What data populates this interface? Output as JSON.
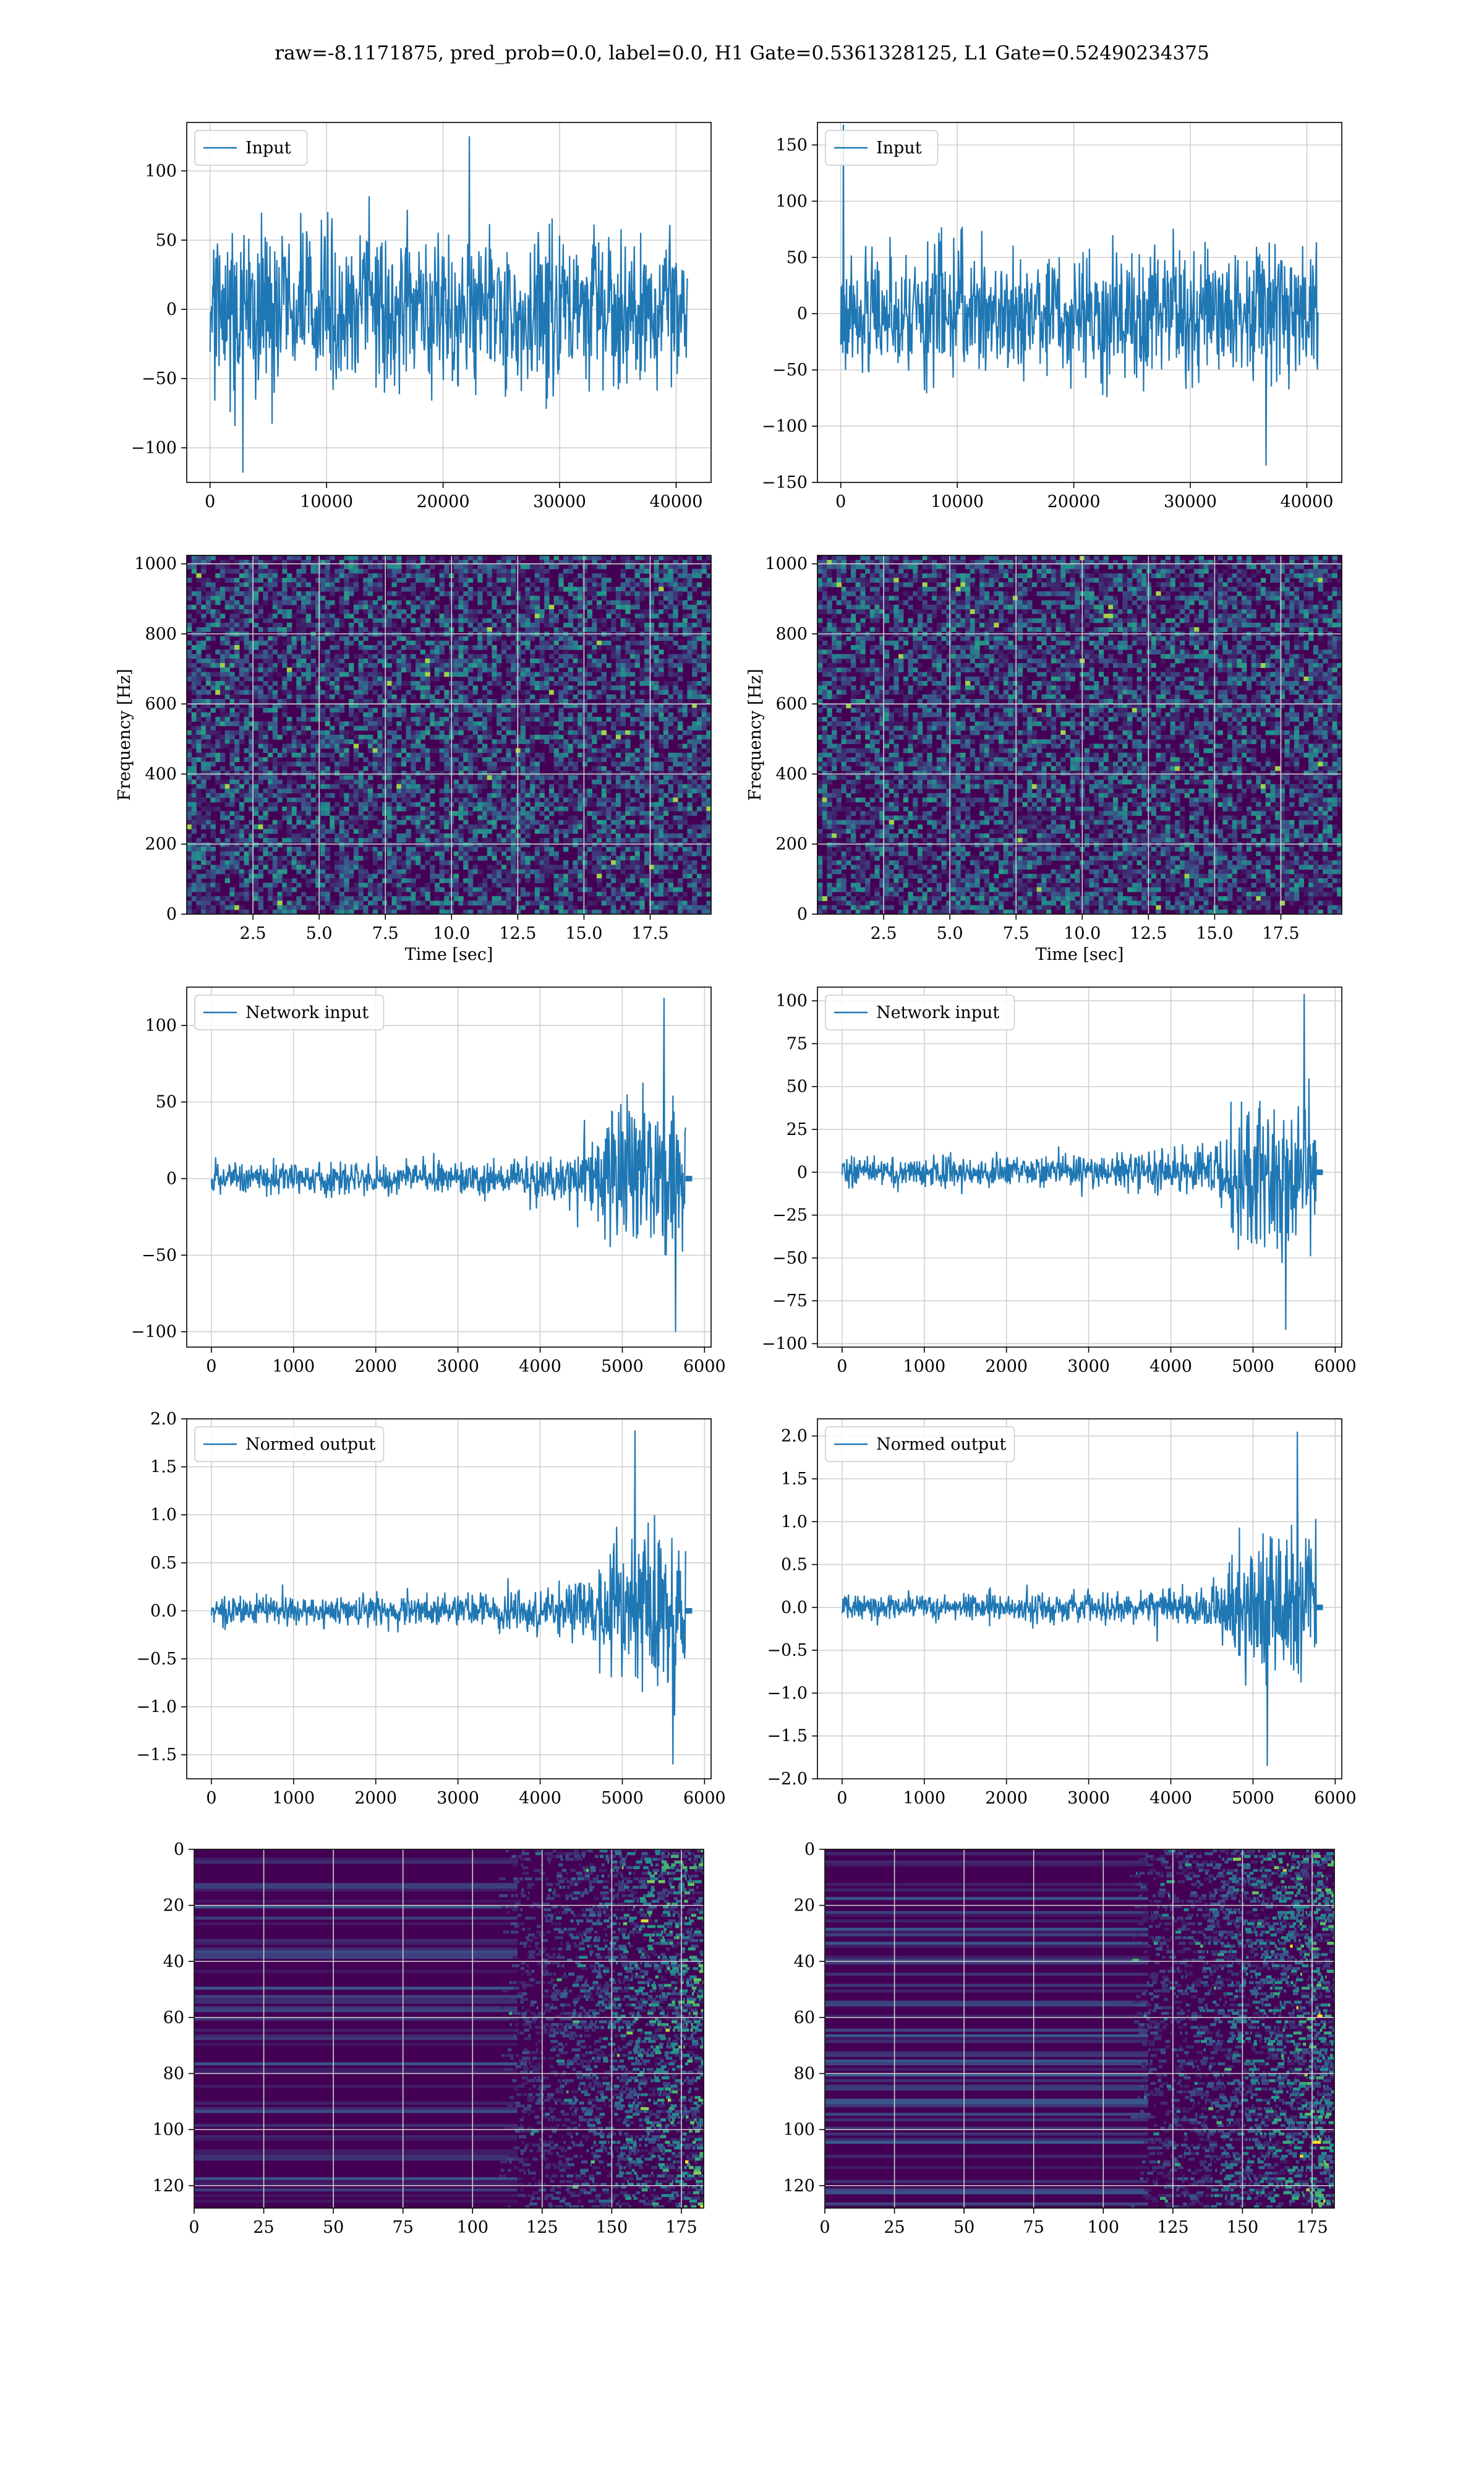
{
  "figure": {
    "title": "raw=-8.1171875, pred_prob=0.0, label=0.0, H1 Gate=0.5361328125, L1 Gate=0.52490234375"
  },
  "colors": {
    "line": "#1f77b4",
    "grid": "#d0d0d0",
    "spec_base": "#440154",
    "viridis": [
      "#440154",
      "#3b528b",
      "#21918c",
      "#5ec962",
      "#fde725"
    ]
  },
  "chart_data": [
    {
      "id": "input-h1",
      "type": "line",
      "row": 0,
      "col": 0,
      "legend": "Input",
      "legend_position": "top-left",
      "grid": true,
      "xlim": [
        -2000,
        43000
      ],
      "ylim": [
        -125,
        135
      ],
      "xticks": [
        0,
        10000,
        20000,
        30000,
        40000
      ],
      "xtick_labels": [
        "0",
        "10000",
        "20000",
        "30000",
        "40000"
      ],
      "yticks": [
        -100,
        -50,
        0,
        50,
        100
      ],
      "ytick_labels": [
        "−100",
        "−50",
        "0",
        "50",
        "100"
      ],
      "xlabel": "",
      "ylabel": "",
      "signal": {
        "x_start": 0,
        "x_end": 40960,
        "envelope": [
          [
            0,
            75
          ],
          [
            1,
            75
          ]
        ],
        "peak_max": 125,
        "peak_min": -118
      }
    },
    {
      "id": "input-l1",
      "type": "line",
      "row": 0,
      "col": 1,
      "legend": "Input",
      "legend_position": "top-left",
      "grid": true,
      "xlim": [
        -2000,
        43000
      ],
      "ylim": [
        -150,
        170
      ],
      "xticks": [
        0,
        10000,
        20000,
        30000,
        40000
      ],
      "xtick_labels": [
        "0",
        "10000",
        "20000",
        "30000",
        "40000"
      ],
      "yticks": [
        -150,
        -100,
        -50,
        0,
        50,
        100,
        150
      ],
      "ytick_labels": [
        "−150",
        "−100",
        "−50",
        "0",
        "50",
        "100",
        "150"
      ],
      "xlabel": "",
      "ylabel": "",
      "signal": {
        "x_start": 0,
        "x_end": 40960,
        "envelope": [
          [
            0,
            72
          ],
          [
            1,
            72
          ]
        ],
        "peak_max": 168,
        "peak_min": -135
      }
    },
    {
      "id": "spectrogram-h1",
      "type": "heatmap",
      "row": 1,
      "col": 0,
      "grid": true,
      "xlim": [
        0,
        19.8
      ],
      "ylim": [
        0,
        1024
      ],
      "xticks": [
        2.5,
        5.0,
        7.5,
        10.0,
        12.5,
        15.0,
        17.5
      ],
      "xtick_labels": [
        "2.5",
        "5.0",
        "7.5",
        "10.0",
        "12.5",
        "15.0",
        "17.5"
      ],
      "yticks": [
        0,
        200,
        400,
        600,
        800,
        1000
      ],
      "ytick_labels": [
        "0",
        "200",
        "400",
        "600",
        "800",
        "1000"
      ],
      "xlabel": "Time [sec]",
      "ylabel": "Frequency [Hz]",
      "texture": "noise",
      "seed": 11
    },
    {
      "id": "spectrogram-l1",
      "type": "heatmap",
      "row": 1,
      "col": 1,
      "grid": true,
      "xlim": [
        0,
        19.8
      ],
      "ylim": [
        0,
        1024
      ],
      "xticks": [
        2.5,
        5.0,
        7.5,
        10.0,
        12.5,
        15.0,
        17.5
      ],
      "xtick_labels": [
        "2.5",
        "5.0",
        "7.5",
        "10.0",
        "12.5",
        "15.0",
        "17.5"
      ],
      "yticks": [
        0,
        200,
        400,
        600,
        800,
        1000
      ],
      "ytick_labels": [
        "0",
        "200",
        "400",
        "600",
        "800",
        "1000"
      ],
      "xlabel": "Time [sec]",
      "ylabel": "Frequency [Hz]",
      "texture": "noise",
      "seed": 29
    },
    {
      "id": "network-input-h1",
      "type": "line",
      "row": 2,
      "col": 0,
      "legend": "Network input",
      "legend_position": "top-left",
      "grid": true,
      "xlim": [
        -300,
        6080
      ],
      "ylim": [
        -110,
        125
      ],
      "xticks": [
        0,
        1000,
        2000,
        3000,
        4000,
        5000,
        6000
      ],
      "xtick_labels": [
        "0",
        "1000",
        "2000",
        "3000",
        "4000",
        "5000",
        "6000"
      ],
      "yticks": [
        -100,
        -50,
        0,
        50,
        100
      ],
      "ytick_labels": [
        "−100",
        "−50",
        "0",
        "50",
        "100"
      ],
      "xlabel": "",
      "ylabel": "",
      "signal": {
        "x_start": 0,
        "x_end": 5770,
        "envelope": [
          [
            0,
            12
          ],
          [
            0.55,
            14
          ],
          [
            0.72,
            20
          ],
          [
            0.8,
            28
          ],
          [
            0.83,
            55
          ],
          [
            0.9,
            75
          ],
          [
            1,
            70
          ]
        ],
        "peak_max": 118,
        "peak_min": -100,
        "tail_end": 5850
      }
    },
    {
      "id": "network-input-l1",
      "type": "line",
      "row": 2,
      "col": 1,
      "legend": "Network input",
      "legend_position": "top-left",
      "grid": true,
      "xlim": [
        -300,
        6080
      ],
      "ylim": [
        -102,
        108
      ],
      "xticks": [
        0,
        1000,
        2000,
        3000,
        4000,
        5000,
        6000
      ],
      "xtick_labels": [
        "0",
        "1000",
        "2000",
        "3000",
        "4000",
        "5000",
        "6000"
      ],
      "yticks": [
        -100,
        -75,
        -50,
        -25,
        0,
        25,
        50,
        75,
        100
      ],
      "ytick_labels": [
        "−100",
        "−75",
        "−50",
        "−25",
        "0",
        "25",
        "50",
        "75",
        "100"
      ],
      "xlabel": "",
      "ylabel": "",
      "signal": {
        "x_start": 0,
        "x_end": 5770,
        "envelope": [
          [
            0,
            11
          ],
          [
            0.55,
            13
          ],
          [
            0.72,
            18
          ],
          [
            0.8,
            26
          ],
          [
            0.83,
            50
          ],
          [
            0.9,
            65
          ],
          [
            1,
            60
          ]
        ],
        "peak_max": 104,
        "peak_min": -92,
        "tail_end": 5850
      }
    },
    {
      "id": "normed-output-h1",
      "type": "line",
      "row": 3,
      "col": 0,
      "legend": "Normed output",
      "legend_position": "top-left",
      "grid": true,
      "xlim": [
        -300,
        6080
      ],
      "ylim": [
        -1.75,
        2.0
      ],
      "xticks": [
        0,
        1000,
        2000,
        3000,
        4000,
        5000,
        6000
      ],
      "xtick_labels": [
        "0",
        "1000",
        "2000",
        "3000",
        "4000",
        "5000",
        "6000"
      ],
      "yticks": [
        -1.5,
        -1.0,
        -0.5,
        0.0,
        0.5,
        1.0,
        1.5,
        2.0
      ],
      "ytick_labels": [
        "−1.5",
        "−1.0",
        "−0.5",
        "0.0",
        "0.5",
        "1.0",
        "1.5",
        "2.0"
      ],
      "xlabel": "",
      "ylabel": "",
      "signal": {
        "x_start": 0,
        "x_end": 5770,
        "envelope": [
          [
            0,
            0.2
          ],
          [
            0.55,
            0.22
          ],
          [
            0.72,
            0.3
          ],
          [
            0.8,
            0.45
          ],
          [
            0.83,
            0.85
          ],
          [
            0.9,
            1.15
          ],
          [
            1,
            1.1
          ]
        ],
        "peak_max": 1.88,
        "peak_min": -1.6,
        "tail_end": 5850
      }
    },
    {
      "id": "normed-output-l1",
      "type": "line",
      "row": 3,
      "col": 1,
      "legend": "Normed output",
      "legend_position": "top-left",
      "grid": true,
      "xlim": [
        -300,
        6080
      ],
      "ylim": [
        -2.0,
        2.2
      ],
      "xticks": [
        0,
        1000,
        2000,
        3000,
        4000,
        5000,
        6000
      ],
      "xtick_labels": [
        "0",
        "1000",
        "2000",
        "3000",
        "4000",
        "5000",
        "6000"
      ],
      "yticks": [
        -2.0,
        -1.5,
        -1.0,
        -0.5,
        0.0,
        0.5,
        1.0,
        1.5,
        2.0
      ],
      "ytick_labels": [
        "−2.0",
        "−1.5",
        "−1.0",
        "−0.5",
        "0.0",
        "0.5",
        "1.0",
        "1.5",
        "2.0"
      ],
      "xlabel": "",
      "ylabel": "",
      "signal": {
        "x_start": 0,
        "x_end": 5770,
        "envelope": [
          [
            0,
            0.2
          ],
          [
            0.55,
            0.22
          ],
          [
            0.72,
            0.3
          ],
          [
            0.8,
            0.45
          ],
          [
            0.83,
            0.9
          ],
          [
            0.9,
            1.2
          ],
          [
            1,
            1.15
          ]
        ],
        "peak_max": 2.05,
        "peak_min": -1.85,
        "tail_end": 5850
      }
    },
    {
      "id": "feature-map-h1",
      "type": "heatmap",
      "row": 4,
      "col": 0,
      "grid": true,
      "xlim": [
        0,
        183
      ],
      "ylim": [
        128,
        0
      ],
      "xticks": [
        0,
        25,
        50,
        75,
        100,
        125,
        150,
        175
      ],
      "xtick_labels": [
        "0",
        "25",
        "50",
        "75",
        "100",
        "125",
        "150",
        "175"
      ],
      "yticks": [
        0,
        20,
        40,
        60,
        80,
        100,
        120
      ],
      "ytick_labels": [
        "0",
        "20",
        "40",
        "60",
        "80",
        "100",
        "120"
      ],
      "xlabel": "",
      "ylabel": "",
      "texture": "bands",
      "seed": 5,
      "onset_col": 125
    },
    {
      "id": "feature-map-l1",
      "type": "heatmap",
      "row": 4,
      "col": 1,
      "grid": true,
      "xlim": [
        0,
        183
      ],
      "ylim": [
        128,
        0
      ],
      "xticks": [
        0,
        25,
        50,
        75,
        100,
        125,
        150,
        175
      ],
      "xtick_labels": [
        "0",
        "25",
        "50",
        "75",
        "100",
        "125",
        "150",
        "175"
      ],
      "yticks": [
        0,
        20,
        40,
        60,
        80,
        100,
        120
      ],
      "ytick_labels": [
        "0",
        "20",
        "40",
        "60",
        "80",
        "100",
        "120"
      ],
      "xlabel": "",
      "ylabel": "",
      "texture": "bands",
      "seed": 17,
      "onset_col": 125
    }
  ]
}
